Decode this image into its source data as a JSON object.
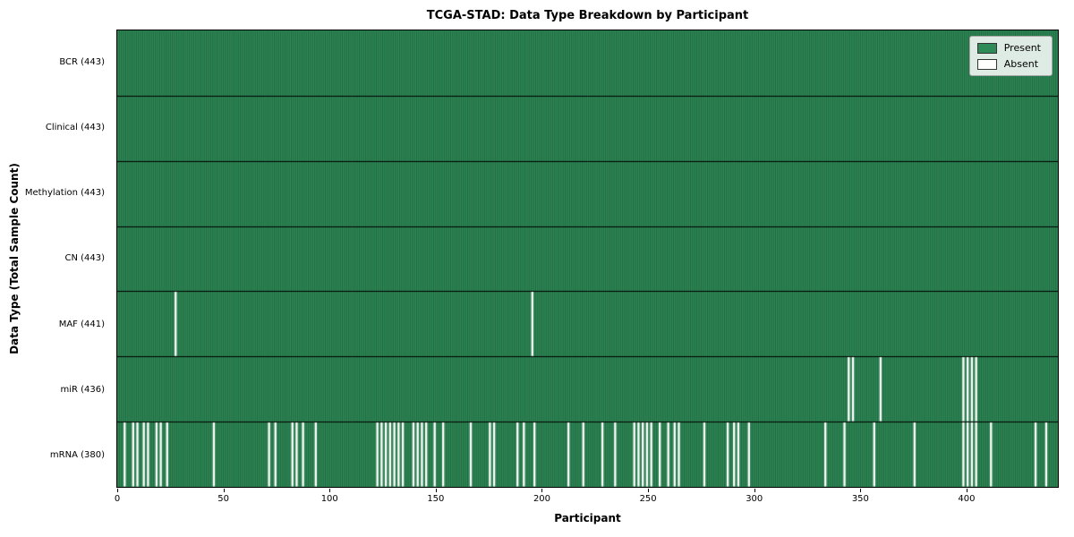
{
  "title": "TCGA-STAD: Data Type Breakdown by Participant",
  "chart_data": {
    "type": "heatmap",
    "title": "TCGA-STAD: Data Type Breakdown by Participant",
    "xlabel": "Participant",
    "ylabel": "Data Type (Total Sample Count)",
    "n_participants": 443,
    "x_ticks": [
      0,
      50,
      100,
      150,
      200,
      250,
      300,
      350,
      400
    ],
    "legend": [
      {
        "label": "Present",
        "color": "#2e8b57"
      },
      {
        "label": "Absent",
        "color": "#ffffff"
      }
    ],
    "colors": {
      "present": "#2e8b57",
      "absent": "#ffffff",
      "bar_edge": "rgba(0,0,0,0.45)",
      "row_divider": "#000000"
    },
    "rows": [
      {
        "label": "BCR (443)",
        "name": "BCR",
        "present_count": 443,
        "absent_participants": []
      },
      {
        "label": "Clinical (443)",
        "name": "Clinical",
        "present_count": 443,
        "absent_participants": []
      },
      {
        "label": "Methylation (443)",
        "name": "Methylation",
        "present_count": 443,
        "absent_participants": []
      },
      {
        "label": "CN (443)",
        "name": "CN",
        "present_count": 443,
        "absent_participants": []
      },
      {
        "label": "MAF (441)",
        "name": "MAF",
        "present_count": 441,
        "absent_participants": [
          27,
          195
        ]
      },
      {
        "label": "miR (436)",
        "name": "miR",
        "present_count": 436,
        "absent_participants": [
          344,
          346,
          359,
          398,
          400,
          402,
          404
        ]
      },
      {
        "label": "mRNA (380)",
        "name": "mRNA",
        "present_count": 380,
        "absent_participants": [
          3,
          7,
          9,
          12,
          14,
          18,
          20,
          23,
          45,
          71,
          74,
          82,
          84,
          87,
          93,
          122,
          124,
          126,
          128,
          130,
          132,
          134,
          139,
          141,
          143,
          145,
          149,
          153,
          166,
          175,
          177,
          188,
          191,
          196,
          212,
          219,
          228,
          234,
          243,
          245,
          247,
          249,
          251,
          255,
          259,
          262,
          264,
          276,
          287,
          290,
          292,
          297,
          333,
          342,
          356,
          375,
          398,
          400,
          402,
          404,
          411,
          432,
          437
        ]
      }
    ]
  }
}
